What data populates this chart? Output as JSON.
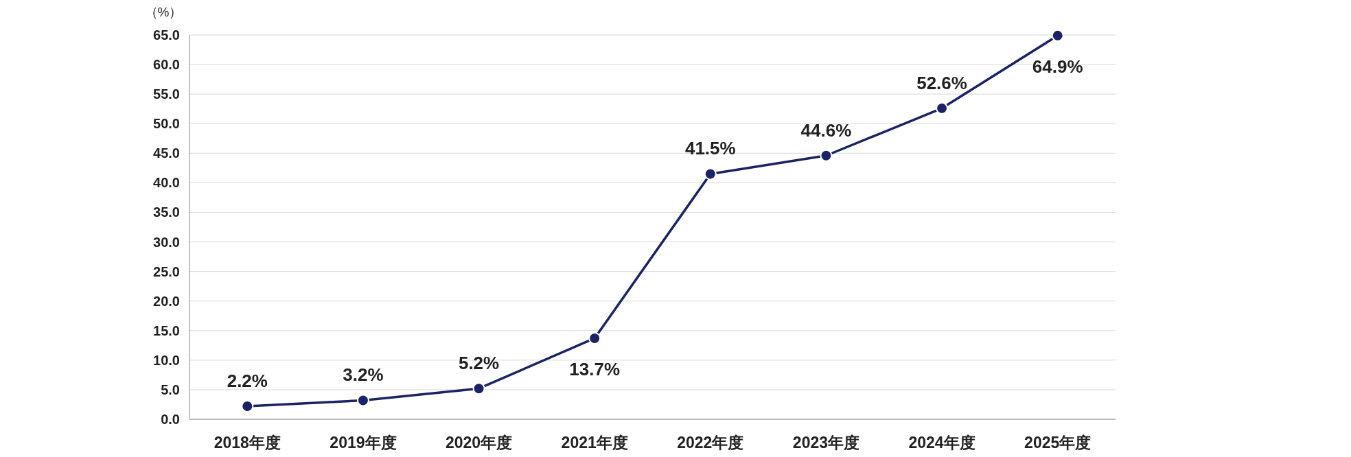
{
  "chart_data": {
    "type": "line",
    "ylabel": "（%）",
    "categories": [
      "2018年度",
      "2019年度",
      "2020年度",
      "2021年度",
      "2022年度",
      "2023年度",
      "2024年度",
      "2025年度"
    ],
    "series": [
      {
        "color": "#1b2266",
        "values": [
          2.2,
          3.2,
          5.2,
          13.7,
          41.5,
          44.6,
          52.6,
          64.9
        ]
      }
    ],
    "value_labels": [
      "2.2%",
      "3.2%",
      "5.2%",
      "13.7%",
      "41.5%",
      "44.6%",
      "52.6%",
      "64.9%"
    ],
    "ylim": [
      0,
      65
    ],
    "yticks": [
      {
        "value": 0,
        "label": "0.0"
      },
      {
        "value": 5,
        "label": "5.0"
      },
      {
        "value": 10,
        "label": "10.0"
      },
      {
        "value": 15,
        "label": "15.0"
      },
      {
        "value": 20,
        "label": "20.0"
      },
      {
        "value": 25,
        "label": "25.0"
      },
      {
        "value": 30,
        "label": "30.0"
      },
      {
        "value": 35,
        "label": "35.0"
      },
      {
        "value": 40,
        "label": "40.0"
      },
      {
        "value": 45,
        "label": "45.0"
      },
      {
        "value": 50,
        "label": "50.0"
      },
      {
        "value": 55,
        "label": "55.0"
      },
      {
        "value": 60,
        "label": "60.0"
      },
      {
        "value": 65,
        "label": "65.0"
      }
    ],
    "grid": "y",
    "marker": "circle",
    "line_style": "solid"
  }
}
